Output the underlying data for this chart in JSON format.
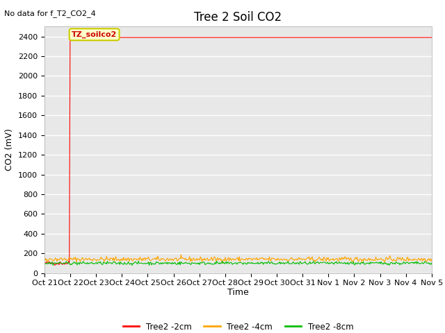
{
  "title": "Tree 2 Soil CO2",
  "no_data_text": "No data for f_T2_CO2_4",
  "xlabel": "Time",
  "ylabel": "CO2 (mV)",
  "ylim": [
    0,
    2500
  ],
  "yticks": [
    0,
    200,
    400,
    600,
    800,
    1000,
    1200,
    1400,
    1600,
    1800,
    2000,
    2200,
    2400
  ],
  "fig_bg_color": "#ffffff",
  "plot_bg_color": "#e8e8e8",
  "annotation_text": "TZ_soilco2",
  "line_red_color": "#ff0000",
  "line_orange_color": "#ffa500",
  "line_green_color": "#00bb00",
  "legend_labels": [
    "Tree2 -2cm",
    "Tree2 -4cm",
    "Tree2 -8cm"
  ],
  "x_tick_labels": [
    "Oct 21",
    "Oct 22",
    "Oct 23",
    "Oct 24",
    "Oct 25",
    "Oct 26",
    "Oct 27",
    "Oct 28",
    "Oct 29",
    "Oct 30",
    "Oct 31",
    "Nov 1",
    "Nov 2",
    "Nov 3",
    "Nov 4",
    "Nov 5"
  ],
  "num_points": 500,
  "title_fontsize": 12,
  "tick_fontsize": 8,
  "label_fontsize": 9
}
